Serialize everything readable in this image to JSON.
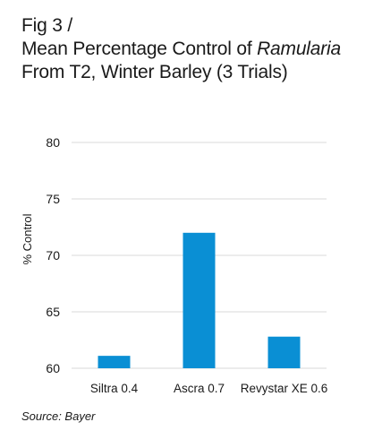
{
  "figure": {
    "title_lines": [
      {
        "parts": [
          "Fig 3 /"
        ]
      },
      {
        "parts": [
          "Mean Percentage Control of ",
          "Ramularia",
          ""
        ]
      },
      {
        "parts": [
          "From T2, Winter Barley (3 Trials)"
        ]
      }
    ],
    "source": "Source: Bayer"
  },
  "colors": {
    "bar": "#0a8fd4",
    "grid": "#d9d9d9",
    "text": "#1a1a1a"
  },
  "chart_data": {
    "type": "bar",
    "title": "Fig 3 / Mean Percentage Control of Ramularia From T2, Winter Barley (3 Trials)",
    "categories": [
      "Siltra 0.4",
      "Ascra 0.7",
      "Revystar XE 0.6"
    ],
    "values": [
      61.1,
      72.0,
      62.8
    ],
    "xlabel": "",
    "ylabel": "% Control",
    "ylim": [
      60,
      80
    ],
    "yticks": [
      60,
      65,
      70,
      75,
      80
    ],
    "ytick_labels": [
      "60",
      "65",
      "70",
      "75",
      "80"
    ],
    "grid": true,
    "legend": "none"
  }
}
